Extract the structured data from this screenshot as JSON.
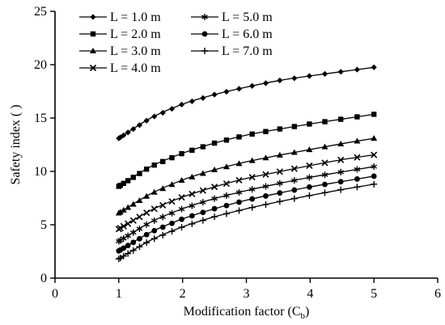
{
  "chart_data": {
    "type": "line",
    "xlabel": "Modification factor (C",
    "xlabel_sub": "b",
    "xlabel_close": ")",
    "ylabel": "Safety index ( )",
    "xlim": [
      0,
      6
    ],
    "ylim": [
      0,
      25
    ],
    "xticks": [
      0,
      1,
      2,
      3,
      4,
      5,
      6
    ],
    "yticks": [
      0,
      5,
      10,
      15,
      20,
      25
    ],
    "grid": false,
    "legend_position": "top-left",
    "series": [
      {
        "name": "L = 1.0 m",
        "marker": "diamond",
        "x": [
          1,
          1.5,
          2,
          2.5,
          3,
          3.5,
          4,
          4.5,
          5
        ],
        "y": [
          13.1,
          15.0,
          16.3,
          17.2,
          17.9,
          18.5,
          18.95,
          19.35,
          19.75
        ]
      },
      {
        "name": "L = 2.0 m",
        "marker": "square",
        "x": [
          1,
          1.5,
          2,
          2.5,
          3,
          3.5,
          4,
          4.5,
          5
        ],
        "y": [
          8.6,
          10.45,
          11.7,
          12.65,
          13.4,
          13.95,
          14.45,
          14.9,
          15.35
        ]
      },
      {
        "name": "L = 3.0 m",
        "marker": "triangle",
        "x": [
          1,
          1.5,
          2,
          2.5,
          3,
          3.5,
          4,
          4.5,
          5
        ],
        "y": [
          6.1,
          7.9,
          9.2,
          10.15,
          10.9,
          11.5,
          12.05,
          12.6,
          13.1
        ]
      },
      {
        "name": "L = 4.0 m",
        "marker": "x",
        "x": [
          1,
          1.5,
          2,
          2.5,
          3,
          3.5,
          4,
          4.5,
          5
        ],
        "y": [
          4.6,
          6.35,
          7.6,
          8.55,
          9.35,
          9.95,
          10.55,
          11.1,
          11.55
        ]
      },
      {
        "name": "L = 5.0 m",
        "marker": "star",
        "x": [
          1,
          1.5,
          2,
          2.5,
          3,
          3.5,
          4,
          4.5,
          5
        ],
        "y": [
          3.45,
          5.25,
          6.5,
          7.45,
          8.2,
          8.85,
          9.45,
          9.95,
          10.45
        ]
      },
      {
        "name": "L = 6.0 m",
        "marker": "circle",
        "x": [
          1,
          1.5,
          2,
          2.5,
          3,
          3.5,
          4,
          4.5,
          5
        ],
        "y": [
          2.55,
          4.3,
          5.55,
          6.5,
          7.3,
          7.95,
          8.55,
          9.05,
          9.55
        ]
      },
      {
        "name": "L = 7.0 m",
        "marker": "plus",
        "x": [
          1,
          1.5,
          2,
          2.5,
          3,
          3.5,
          4,
          4.5,
          5
        ],
        "y": [
          1.8,
          3.55,
          4.8,
          5.75,
          6.5,
          7.15,
          7.75,
          8.3,
          8.8
        ]
      }
    ]
  }
}
